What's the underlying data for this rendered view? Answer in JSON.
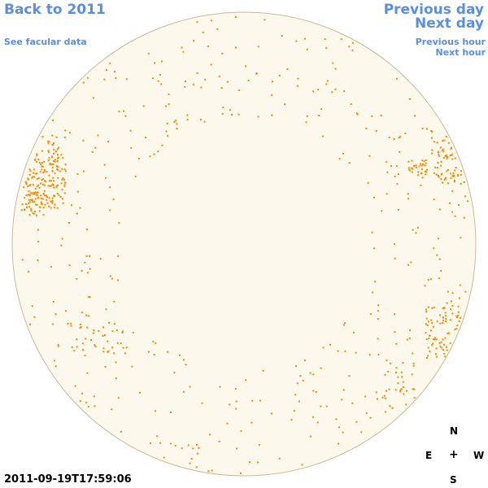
{
  "nav": {
    "back_label": "Back to 2011",
    "facular_label": "See facular data",
    "prev_day_label": "Previous day",
    "next_day_label": "Next day",
    "prev_hour_label": "Previous hour",
    "next_hour_label": "Next hour"
  },
  "compass": {
    "north": "N",
    "east": "E",
    "center": "+",
    "west": "W",
    "south": "S"
  },
  "timestamp": "2011-09-19T17:59:06",
  "colors": {
    "link": "#5b8fd9",
    "disk_fill": "#fdf8ec",
    "disk_border": "#c9b99a",
    "feature": "#f08c00"
  }
}
